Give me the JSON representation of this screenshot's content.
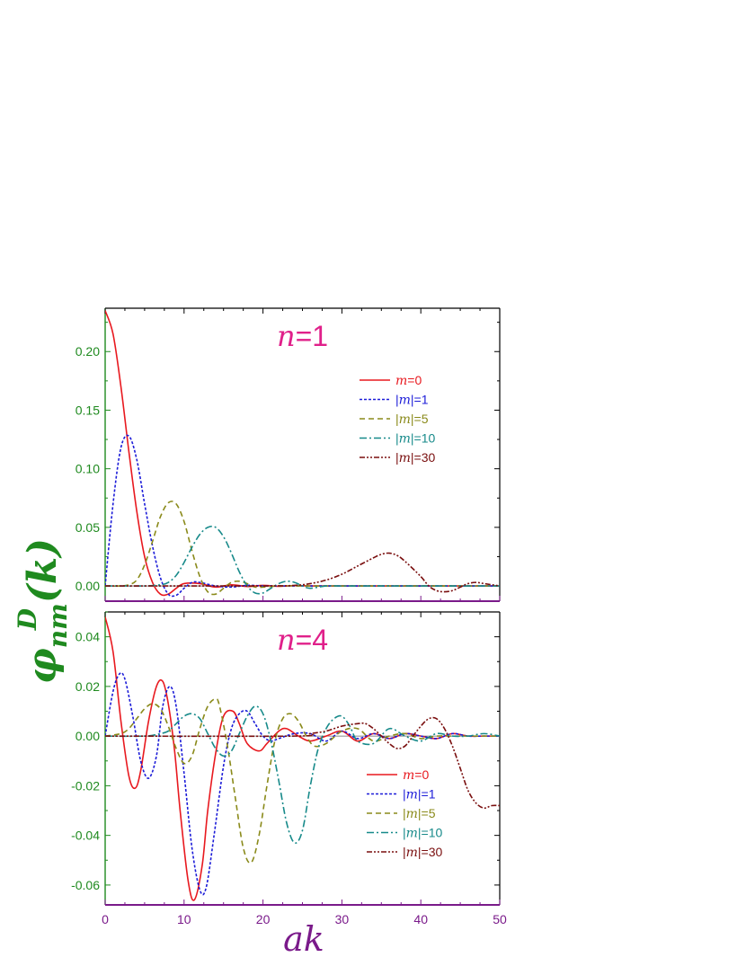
{
  "chart_data": [
    {
      "type": "line",
      "title_var": "n",
      "title_rest": "=1",
      "xlim": [
        0,
        50
      ],
      "ylim": [
        -0.013,
        0.237
      ],
      "yticks": [
        {
          "v": 0.0,
          "label": "0.00"
        },
        {
          "v": 0.05,
          "label": "0.05"
        },
        {
          "v": 0.1,
          "label": "0.10"
        },
        {
          "v": 0.15,
          "label": "0.15"
        },
        {
          "v": 0.2,
          "label": "0.20"
        }
      ],
      "legend_position": "top-right",
      "series": [
        {
          "name": "m=0",
          "var": "m",
          "rest": "=0",
          "abs": false,
          "color": "#e8191f",
          "dash": "none",
          "x": [
            0,
            1,
            2,
            3,
            4,
            5,
            6,
            7,
            8,
            9,
            10,
            12,
            14,
            16,
            18,
            20,
            22,
            24,
            26,
            28,
            30,
            35,
            40,
            45,
            50
          ],
          "y": [
            0.235,
            0.215,
            0.17,
            0.115,
            0.064,
            0.025,
            0.003,
            -0.007,
            -0.007,
            -0.002,
            0.002,
            0.002,
            -0.001,
            0.001,
            -0.0005,
            0.0005,
            -0.0003,
            0.0003,
            0,
            0,
            0,
            0,
            0,
            0,
            0
          ]
        },
        {
          "name": "|m|=1",
          "var": "m",
          "rest": "=1",
          "abs": true,
          "color": "#1c1cd8",
          "dash": "3,2",
          "x": [
            0,
            1,
            2,
            3,
            4,
            5,
            6,
            7,
            8,
            9,
            10,
            11,
            12,
            14,
            16,
            18,
            20,
            22,
            25,
            30,
            35,
            40,
            45,
            50
          ],
          "y": [
            0,
            0.07,
            0.118,
            0.128,
            0.108,
            0.07,
            0.034,
            0.007,
            -0.007,
            -0.008,
            -0.002,
            0.003,
            0.003,
            0,
            -0.001,
            0.0005,
            0,
            0,
            0,
            0,
            0,
            0,
            0,
            0
          ]
        },
        {
          "name": "|m|=5",
          "var": "m",
          "rest": "=5",
          "abs": true,
          "color": "#8a8a1a",
          "dash": "6,4",
          "x": [
            0,
            2,
            3,
            4,
            5,
            6,
            7,
            8,
            9,
            10,
            11,
            12,
            13,
            14,
            15,
            16,
            17,
            18,
            19,
            20,
            22,
            25,
            30,
            35,
            40,
            45,
            50
          ],
          "y": [
            0,
            0,
            0.001,
            0.005,
            0.018,
            0.038,
            0.059,
            0.071,
            0.07,
            0.055,
            0.03,
            0.008,
            -0.005,
            -0.007,
            -0.002,
            0.003,
            0.004,
            0.002,
            -0.001,
            -0.001,
            0,
            0,
            0,
            0,
            0,
            0,
            0
          ]
        },
        {
          "name": "|m|=10",
          "var": "m",
          "rest": "=10",
          "abs": true,
          "color": "#178a8a",
          "dash": "8,3,2,3",
          "x": [
            0,
            5,
            7,
            8,
            9,
            10,
            11,
            12,
            13,
            14,
            15,
            16,
            17,
            18,
            19,
            20,
            21,
            22,
            23,
            24,
            25,
            26,
            28,
            30,
            35,
            40,
            45,
            50
          ],
          "y": [
            0,
            0,
            0.001,
            0.003,
            0.009,
            0.02,
            0.033,
            0.044,
            0.05,
            0.05,
            0.042,
            0.028,
            0.012,
            0.0,
            -0.006,
            -0.006,
            -0.002,
            0.002,
            0.004,
            0.003,
            0.0,
            -0.002,
            0,
            0,
            0,
            0,
            0,
            0
          ]
        },
        {
          "name": "|m|=30",
          "var": "m",
          "rest": "=30",
          "abs": true,
          "color": "#7a0f0f",
          "dash": "6,2,2,2,2,2",
          "x": [
            0,
            20,
            24,
            26,
            28,
            30,
            32,
            34,
            35,
            36,
            37,
            38,
            40,
            41,
            42,
            43,
            44,
            45,
            46,
            47,
            48,
            50
          ],
          "y": [
            0,
            0,
            0.0005,
            0.002,
            0.005,
            0.01,
            0.017,
            0.024,
            0.027,
            0.028,
            0.026,
            0.021,
            0.008,
            0.0,
            -0.004,
            -0.005,
            -0.004,
            -0.001,
            0.002,
            0.003,
            0.002,
            0
          ]
        }
      ]
    },
    {
      "type": "line",
      "title_var": "n",
      "title_rest": "=4",
      "xlim": [
        0,
        50
      ],
      "ylim": [
        -0.068,
        0.05
      ],
      "yticks": [
        {
          "v": -0.06,
          "label": "-0.06"
        },
        {
          "v": -0.04,
          "label": "-0.04"
        },
        {
          "v": -0.02,
          "label": "-0.02"
        },
        {
          "v": 0.0,
          "label": "0.00"
        },
        {
          "v": 0.02,
          "label": "0.02"
        },
        {
          "v": 0.04,
          "label": "0.04"
        }
      ],
      "xticks": [
        {
          "v": 0,
          "label": "0"
        },
        {
          "v": 10,
          "label": "10"
        },
        {
          "v": 20,
          "label": "20"
        },
        {
          "v": 30,
          "label": "30"
        },
        {
          "v": 40,
          "label": "40"
        },
        {
          "v": 50,
          "label": "50"
        }
      ],
      "legend_position": "bottom-right",
      "series": [
        {
          "name": "m=0",
          "var": "m",
          "rest": "=0",
          "abs": false,
          "color": "#e8191f",
          "dash": "none",
          "x": [
            0,
            1,
            2,
            3,
            3.8,
            4.5,
            5.5,
            6.5,
            7.3,
            8,
            8.8,
            9.5,
            10.5,
            11.3,
            12.3,
            13,
            14,
            15,
            16.2,
            17,
            18,
            19.5,
            20.5,
            22,
            23,
            24.5,
            26,
            28,
            30,
            32,
            34,
            36,
            38,
            40,
            42,
            44,
            46,
            48,
            50
          ],
          "y": [
            0.048,
            0.034,
            0.006,
            -0.016,
            -0.021,
            -0.014,
            0.006,
            0.02,
            0.022,
            0.013,
            -0.006,
            -0.03,
            -0.058,
            -0.066,
            -0.052,
            -0.03,
            -0.007,
            0.008,
            0.01,
            0.005,
            -0.003,
            -0.006,
            -0.003,
            0.002,
            0.003,
            0.0,
            -0.002,
            0.0,
            0.002,
            -0.002,
            0.001,
            -0.001,
            0.001,
            0.0,
            -0.001,
            0.001,
            0.0,
            0.0,
            0.0
          ]
        },
        {
          "name": "|m|=1",
          "var": "m",
          "rest": "=1",
          "abs": true,
          "color": "#1c1cd8",
          "dash": "3,2",
          "x": [
            0,
            1,
            1.8,
            2.5,
            3.5,
            4.5,
            5.5,
            6.5,
            7.3,
            8.2,
            9,
            10,
            11,
            12,
            12.8,
            13.8,
            15,
            16,
            17,
            18,
            19,
            20,
            21,
            22,
            24,
            26,
            28,
            30,
            32,
            34,
            36,
            38,
            40,
            42,
            44,
            46,
            48,
            50
          ],
          "y": [
            0,
            0.018,
            0.025,
            0.023,
            0.008,
            -0.01,
            -0.017,
            -0.008,
            0.012,
            0.02,
            0.012,
            -0.015,
            -0.045,
            -0.062,
            -0.061,
            -0.04,
            -0.012,
            0.003,
            0.009,
            0.01,
            0.005,
            0.0,
            -0.002,
            -0.001,
            0.001,
            0.001,
            -0.002,
            0.002,
            -0.001,
            0.001,
            -0.001,
            0.001,
            0.0,
            -0.001,
            0.001,
            0.0,
            0.0,
            0.0
          ]
        },
        {
          "name": "|m|=5",
          "var": "m",
          "rest": "=5",
          "abs": true,
          "color": "#8a8a1a",
          "dash": "6,4",
          "x": [
            0,
            2,
            3,
            4,
            5,
            6,
            7,
            8,
            9,
            10,
            11,
            12,
            13,
            14,
            14.5,
            15.5,
            16.5,
            17.5,
            18.5,
            19.5,
            20.5,
            21.5,
            22.5,
            23.5,
            24.5,
            25.5,
            26.5,
            28,
            30,
            32,
            34,
            36,
            38,
            40,
            42,
            44,
            46,
            48,
            50
          ],
          "y": [
            0,
            0.001,
            0.003,
            0.007,
            0.011,
            0.013,
            0.011,
            0.004,
            -0.005,
            -0.011,
            -0.008,
            0.003,
            0.012,
            0.015,
            0.012,
            -0.004,
            -0.025,
            -0.045,
            -0.051,
            -0.04,
            -0.02,
            -0.002,
            0.007,
            0.009,
            0.006,
            0.0,
            -0.004,
            -0.003,
            0.002,
            0.003,
            -0.002,
            0.0,
            0.001,
            -0.001,
            0.0,
            0.0,
            0.0,
            0.0,
            0.0
          ]
        },
        {
          "name": "|m|=10",
          "var": "m",
          "rest": "=10",
          "abs": true,
          "color": "#178a8a",
          "dash": "8,3,2,3",
          "x": [
            0,
            5,
            7,
            8,
            9,
            10,
            11,
            12,
            13,
            14,
            15,
            16,
            17,
            18,
            19,
            20,
            21,
            22,
            23,
            24,
            25,
            26,
            27,
            28,
            29,
            30,
            31,
            32,
            34,
            36,
            38,
            40,
            42,
            44,
            46,
            48,
            50
          ],
          "y": [
            0,
            0,
            0.001,
            0.002,
            0.005,
            0.008,
            0.009,
            0.007,
            0.001,
            -0.005,
            -0.008,
            -0.006,
            0.001,
            0.008,
            0.012,
            0.009,
            -0.002,
            -0.018,
            -0.035,
            -0.043,
            -0.038,
            -0.02,
            -0.005,
            0.003,
            0.007,
            0.008,
            0.004,
            -0.002,
            -0.003,
            0.003,
            0.0,
            -0.002,
            0.001,
            0.0,
            0.0,
            0.001,
            0.0
          ]
        },
        {
          "name": "|m|=30",
          "var": "m",
          "rest": "=30",
          "abs": true,
          "color": "#7a0f0f",
          "dash": "6,2,2,2,2,2",
          "x": [
            0,
            24,
            26,
            28,
            30,
            32,
            33,
            34,
            35,
            36,
            37,
            38,
            39,
            40,
            41,
            42,
            43,
            44,
            45,
            46,
            47,
            48,
            49,
            50
          ],
          "y": [
            0,
            0.0,
            0.001,
            0.002,
            0.004,
            0.005,
            0.005,
            0.003,
            0.0,
            -0.003,
            -0.005,
            -0.004,
            0.0,
            0.004,
            0.007,
            0.007,
            0.003,
            -0.004,
            -0.013,
            -0.022,
            -0.027,
            -0.029,
            -0.028,
            -0.028
          ]
        }
      ]
    }
  ],
  "axes": {
    "xlabel": "ak",
    "ylabel_main": "φ",
    "ylabel_sup": "D",
    "ylabel_sub": "nm",
    "ylabel_arg": "(k)"
  },
  "colors": {
    "y_axis": "#1f8a1f",
    "x_axis": "#7a1a8a",
    "title": "#e0208a"
  }
}
